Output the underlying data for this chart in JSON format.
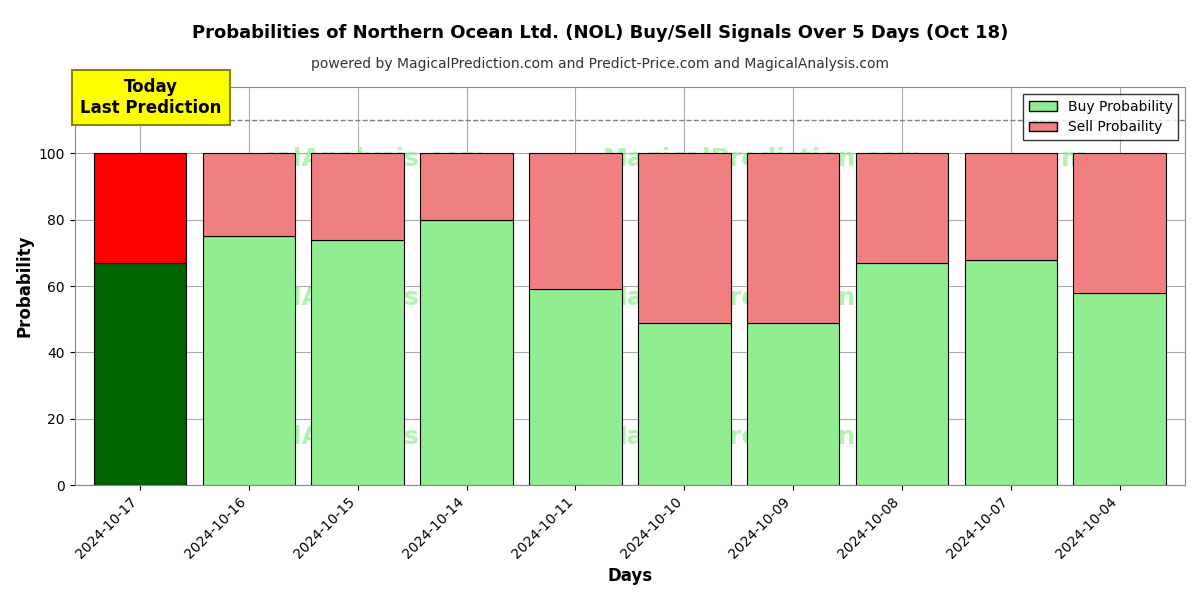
{
  "title": "Probabilities of Northern Ocean Ltd. (NOL) Buy/Sell Signals Over 5 Days (Oct 18)",
  "subtitle": "powered by MagicalPrediction.com and Predict-Price.com and MagicalAnalysis.com",
  "xlabel": "Days",
  "ylabel": "Probability",
  "dates": [
    "2024-10-17",
    "2024-10-16",
    "2024-10-15",
    "2024-10-14",
    "2024-10-11",
    "2024-10-10",
    "2024-10-09",
    "2024-10-08",
    "2024-10-07",
    "2024-10-04"
  ],
  "buy_values": [
    67,
    75,
    74,
    80,
    59,
    49,
    49,
    67,
    68,
    58
  ],
  "sell_values": [
    33,
    25,
    26,
    20,
    41,
    51,
    51,
    33,
    32,
    42
  ],
  "buy_colors": [
    "#006400",
    "#90EE90",
    "#90EE90",
    "#90EE90",
    "#90EE90",
    "#90EE90",
    "#90EE90",
    "#90EE90",
    "#90EE90",
    "#90EE90"
  ],
  "sell_colors": [
    "#FF0000",
    "#F08080",
    "#F08080",
    "#F08080",
    "#F08080",
    "#F08080",
    "#F08080",
    "#F08080",
    "#F08080",
    "#F08080"
  ],
  "today_label": "Today\nLast Prediction",
  "today_box_color": "#FFFF00",
  "legend_buy_color": "#90EE90",
  "legend_sell_color": "#F08080",
  "dashed_line_y": 110,
  "ylim": [
    0,
    120
  ],
  "yticks": [
    0,
    20,
    40,
    60,
    80,
    100
  ],
  "watermark_color": "#90EE90",
  "bg_color": "#ffffff",
  "grid_color": "#aaaaaa",
  "bar_edge_color": "#000000",
  "bar_width": 0.85
}
